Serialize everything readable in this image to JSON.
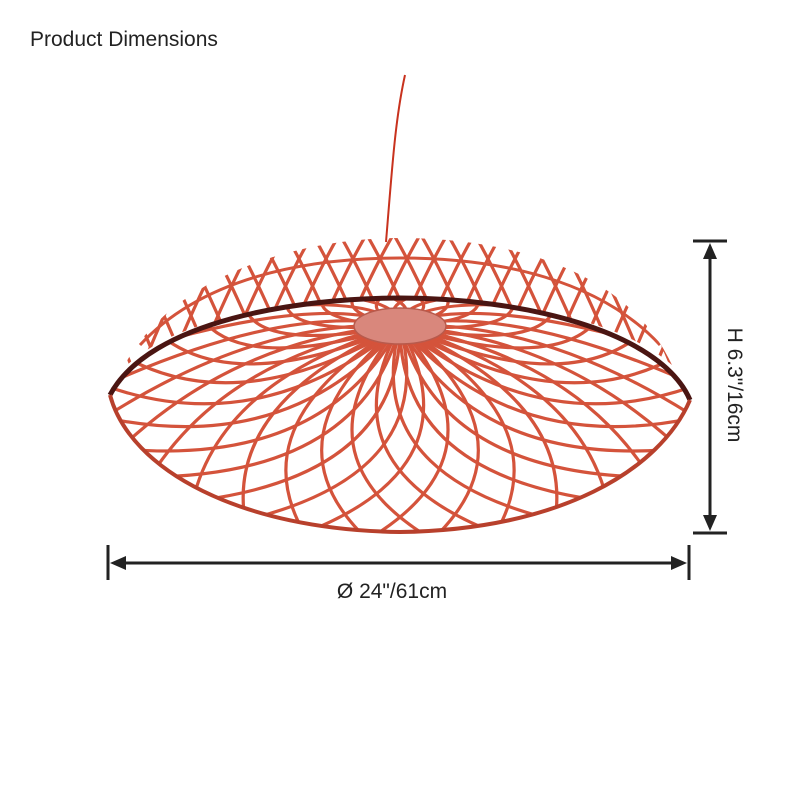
{
  "header": {
    "title": "Product Dimensions"
  },
  "dimensions": {
    "width": "Ø 24\"/61cm",
    "height": "H 6.3\"/16cm"
  }
}
